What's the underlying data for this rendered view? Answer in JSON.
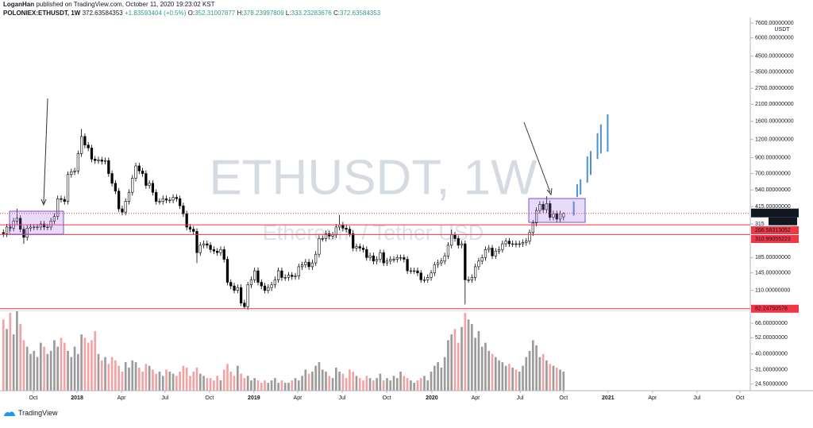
{
  "header": {
    "author": "LoganHan",
    "published": "published on TradingView.com, October 11, 2020 19:23:02 KST"
  },
  "chart_data": {
    "type": "candlestick",
    "symbol": "POLONIEX:ETHUSDT, 1W",
    "change": {
      "value": 1.83593404,
      "label": "+1.83593404"
    },
    "change_pct": {
      "value": 0.5,
      "label": "(+0.5%)"
    },
    "ohlc_labels": [
      "O:",
      "H:",
      "L:",
      "C:"
    ],
    "watermark": "ETHUSDT, 1W",
    "watermark_subtitle": "Ethereum / Tether USD",
    "currency": "USDT",
    "countdown": "13:36:59",
    "open": [
      275,
      270,
      300,
      295,
      330,
      345,
      290,
      255,
      295,
      300,
      300,
      300,
      315,
      300,
      300,
      330,
      355,
      470,
      465,
      450,
      690,
      720,
      730,
      960,
      1260,
      1100,
      1050,
      880,
      860,
      870,
      850,
      860,
      700,
      600,
      530,
      400,
      380,
      450,
      520,
      650,
      790,
      730,
      700,
      580,
      600,
      520,
      450,
      450,
      470,
      460,
      460,
      480,
      470,
      420,
      370,
      300,
      290,
      280,
      200,
      225,
      230,
      225,
      210,
      205,
      200,
      210,
      180,
      125,
      118,
      110,
      115,
      90,
      85,
      120,
      130,
      150,
      125,
      118,
      110,
      115,
      120,
      130,
      150,
      135,
      135,
      140,
      137,
      138,
      160,
      165,
      172,
      160,
      170,
      195,
      250,
      250,
      270,
      260,
      265,
      300,
      310,
      295,
      290,
      270,
      215,
      220,
      215,
      210,
      185,
      190,
      175,
      180,
      200,
      170,
      175,
      180,
      180,
      185,
      185,
      180,
      150,
      150,
      150,
      145,
      130,
      130,
      135,
      145,
      165,
      170,
      175,
      190,
      225,
      265,
      250,
      225,
      230,
      130,
      130,
      135,
      160,
      175,
      185,
      210,
      215,
      190,
      205,
      210,
      230,
      240,
      230,
      230,
      228,
      230,
      235,
      240,
      275,
      320,
      390,
      430,
      395,
      435,
      350,
      370,
      340,
      352.31007877
    ],
    "high": [
      289,
      315,
      315,
      347,
      400,
      362,
      305,
      310,
      315,
      315,
      315,
      331,
      331,
      315,
      347,
      373,
      494,
      494,
      488,
      725,
      756,
      767,
      1008,
      1420,
      1323,
      1155,
      1103,
      924,
      914,
      914,
      903,
      903,
      735,
      630,
      557,
      420,
      473,
      546,
      683,
      830,
      830,
      767,
      735,
      630,
      630,
      546,
      473,
      494,
      494,
      483,
      504,
      504,
      494,
      441,
      389,
      315,
      305,
      294,
      236,
      242,
      242,
      236,
      221,
      215,
      221,
      221,
      189,
      131,
      124,
      121,
      121,
      95,
      126,
      137,
      158,
      158,
      131,
      124,
      121,
      126,
      137,
      158,
      158,
      142,
      147,
      147,
      145,
      168,
      173,
      181,
      181,
      179,
      205,
      263,
      263,
      284,
      284,
      278,
      315,
      362,
      326,
      310,
      305,
      284,
      231,
      231,
      226,
      221,
      200,
      200,
      189,
      210,
      210,
      184,
      189,
      189,
      194,
      194,
      194,
      189,
      158,
      158,
      158,
      152,
      137,
      142,
      152,
      173,
      179,
      184,
      200,
      236,
      288,
      278,
      263,
      242,
      242,
      137,
      142,
      168,
      184,
      194,
      221,
      226,
      226,
      215,
      221,
      242,
      252,
      252,
      242,
      242,
      242,
      247,
      252,
      289,
      336,
      410,
      452,
      452,
      488,
      457,
      389,
      389,
      389,
      378.23997809
    ],
    "low": [
      256,
      256,
      280,
      280,
      313,
      276,
      230,
      242,
      280,
      285,
      285,
      285,
      285,
      285,
      285,
      314,
      337,
      442,
      428,
      428,
      656,
      684,
      694,
      912,
      1045,
      998,
      836,
      817,
      817,
      808,
      808,
      665,
      570,
      504,
      380,
      361,
      361,
      428,
      494,
      618,
      694,
      665,
      551,
      551,
      494,
      428,
      428,
      428,
      437,
      437,
      437,
      447,
      399,
      352,
      285,
      276,
      266,
      170,
      190,
      214,
      214,
      200,
      195,
      190,
      190,
      171,
      119,
      112,
      105,
      105,
      86,
      82,
      81,
      114,
      124,
      119,
      112,
      105,
      105,
      109,
      114,
      124,
      128,
      128,
      128,
      130,
      130,
      131,
      152,
      157,
      152,
      152,
      162,
      185,
      238,
      238,
      247,
      247,
      252,
      285,
      280,
      276,
      257,
      204,
      204,
      204,
      200,
      176,
      176,
      166,
      166,
      171,
      162,
      162,
      166,
      171,
      171,
      176,
      171,
      143,
      143,
      143,
      138,
      124,
      124,
      124,
      128,
      138,
      157,
      162,
      166,
      181,
      214,
      238,
      214,
      214,
      88,
      124,
      124,
      128,
      152,
      166,
      176,
      200,
      181,
      181,
      195,
      200,
      219,
      219,
      219,
      217,
      217,
      219,
      223,
      228,
      261,
      304,
      371,
      375,
      375,
      333,
      333,
      323,
      323,
      333.23283676
    ],
    "close": [
      270,
      300,
      295,
      330,
      345,
      290,
      255,
      295,
      300,
      300,
      300,
      315,
      300,
      300,
      330,
      355,
      470,
      465,
      450,
      690,
      720,
      730,
      960,
      1260,
      1100,
      1050,
      880,
      860,
      870,
      850,
      860,
      700,
      600,
      530,
      400,
      380,
      450,
      520,
      650,
      790,
      730,
      700,
      580,
      600,
      520,
      450,
      450,
      470,
      460,
      460,
      480,
      470,
      420,
      370,
      300,
      290,
      280,
      200,
      225,
      230,
      225,
      210,
      205,
      200,
      210,
      180,
      125,
      118,
      110,
      115,
      90,
      85,
      120,
      130,
      150,
      125,
      118,
      110,
      115,
      120,
      130,
      150,
      135,
      135,
      140,
      137,
      138,
      160,
      165,
      172,
      160,
      170,
      195,
      250,
      250,
      270,
      260,
      265,
      300,
      310,
      295,
      290,
      270,
      215,
      220,
      215,
      210,
      185,
      190,
      175,
      180,
      200,
      170,
      175,
      180,
      180,
      185,
      185,
      180,
      150,
      150,
      150,
      145,
      130,
      130,
      135,
      145,
      165,
      170,
      175,
      190,
      225,
      265,
      250,
      225,
      230,
      130,
      130,
      135,
      160,
      175,
      185,
      210,
      215,
      190,
      205,
      210,
      230,
      240,
      230,
      230,
      228,
      230,
      235,
      240,
      275,
      320,
      390,
      430,
      395,
      435,
      350,
      370,
      340,
      370.79990949,
      372.63584353
    ],
    "volume": [
      70,
      60,
      78,
      55,
      80,
      65,
      50,
      45,
      40,
      42,
      38,
      48,
      45,
      40,
      42,
      50,
      45,
      52,
      48,
      42,
      38,
      45,
      40,
      55,
      52,
      48,
      50,
      58,
      40,
      36,
      38,
      34,
      38,
      36,
      33,
      30,
      35,
      32,
      36,
      35,
      32,
      30,
      34,
      33,
      31,
      29,
      30,
      28,
      31,
      30,
      29,
      28,
      30,
      33,
      32,
      28,
      30,
      32,
      29,
      28,
      27,
      27,
      26,
      28,
      26,
      31,
      34,
      30,
      28,
      33,
      29,
      27,
      28,
      26,
      27,
      26,
      25,
      26,
      25,
      26,
      27,
      25,
      26,
      25,
      25,
      26,
      27,
      26,
      28,
      31,
      29,
      30,
      33,
      35,
      31,
      30,
      28,
      27,
      32,
      30,
      29,
      27,
      31,
      30,
      28,
      27,
      26,
      28,
      27,
      26,
      27,
      29,
      26,
      27,
      26,
      28,
      27,
      30,
      28,
      27,
      26,
      25,
      26,
      27,
      28,
      26,
      30,
      33,
      35,
      32,
      38,
      50,
      55,
      60,
      48,
      62,
      78,
      70,
      65,
      52,
      58,
      45,
      48,
      42,
      40,
      38,
      36,
      35,
      33,
      34,
      32,
      31,
      30,
      33,
      38,
      42,
      50,
      46,
      38,
      40,
      36,
      34,
      33,
      32,
      31,
      30
    ],
    "up_color": "#ffffff",
    "down_color": "#000000",
    "candle_stroke": "#000000",
    "volume_up_color": "#9b9b9b",
    "volume_down_color": "#f2a3a3",
    "log_scale": true,
    "ylim": [
      80,
      8300
    ],
    "yticks": [
      {
        "value": 7600,
        "label": "7600.00000000"
      },
      {
        "value": 6000,
        "label": "6000.00000000"
      },
      {
        "value": 4500,
        "label": "4500.00000000"
      },
      {
        "value": 3500,
        "label": "3500.00000000"
      },
      {
        "value": 2700,
        "label": "2700.00000000"
      },
      {
        "value": 2100,
        "label": "2100.00000000"
      },
      {
        "value": 1600,
        "label": "1600.00000000"
      },
      {
        "value": 1200,
        "label": "1200.00000000"
      },
      {
        "value": 900,
        "label": "900.00000000"
      },
      {
        "value": 700,
        "label": "700.00000000"
      },
      {
        "value": 540,
        "label": "540.00000000"
      },
      {
        "value": 415,
        "label": "415.00000000"
      },
      {
        "value": 315,
        "label": "315"
      },
      {
        "value": 185,
        "label": "185.00000000"
      },
      {
        "value": 145,
        "label": "145.00000000"
      },
      {
        "value": 110,
        "label": "110.00000000"
      }
    ],
    "y2lim": [
      22,
      78
    ],
    "y2ticks": [
      {
        "value": 66,
        "label": "66.00000000"
      },
      {
        "value": 52,
        "label": "52.00000000"
      },
      {
        "value": 40,
        "label": "40.00000000"
      },
      {
        "value": 31,
        "label": "31.00000000"
      },
      {
        "value": 24.5,
        "label": "24.50000000"
      }
    ],
    "xlim": [
      -1,
      220
    ],
    "xticks": [
      {
        "value": 8.8,
        "label": "Oct"
      },
      {
        "value": 21.7,
        "label": "2018"
      },
      {
        "value": 34.8,
        "label": "Apr"
      },
      {
        "value": 47.6,
        "label": "Jul"
      },
      {
        "value": 60.7,
        "label": "Oct"
      },
      {
        "value": 73.8,
        "label": "2019"
      },
      {
        "value": 86.7,
        "label": "Apr"
      },
      {
        "value": 99.8,
        "label": "Jul"
      },
      {
        "value": 112.9,
        "label": "Oct"
      },
      {
        "value": 126.2,
        "label": "2020"
      },
      {
        "value": 139.1,
        "label": "Apr"
      },
      {
        "value": 152.2,
        "label": "Jul"
      },
      {
        "value": 165,
        "label": "Oct"
      },
      {
        "value": 178.1,
        "label": "2021"
      },
      {
        "value": 191.2,
        "label": "Apr"
      },
      {
        "value": 204.3,
        "label": "Jul"
      },
      {
        "value": 217,
        "label": "Oct"
      }
    ],
    "levels": [
      {
        "value": 310.99055223,
        "color": "#f23645"
      },
      {
        "value": 266.58313052,
        "color": "#f23645"
      },
      {
        "value": 82.24750578,
        "color": "#f23645"
      }
    ],
    "projection": {
      "color": "#4a90d9",
      "x": [
        168,
        169,
        170,
        172,
        173,
        175,
        176,
        178
      ],
      "high": [
        450,
        591,
        639,
        919,
        1000,
        1328,
        1525,
        1790
      ],
      "low": [
        360,
        483,
        502,
        607,
        684,
        880,
        965,
        990
      ]
    }
  },
  "footer": "TradingView"
}
